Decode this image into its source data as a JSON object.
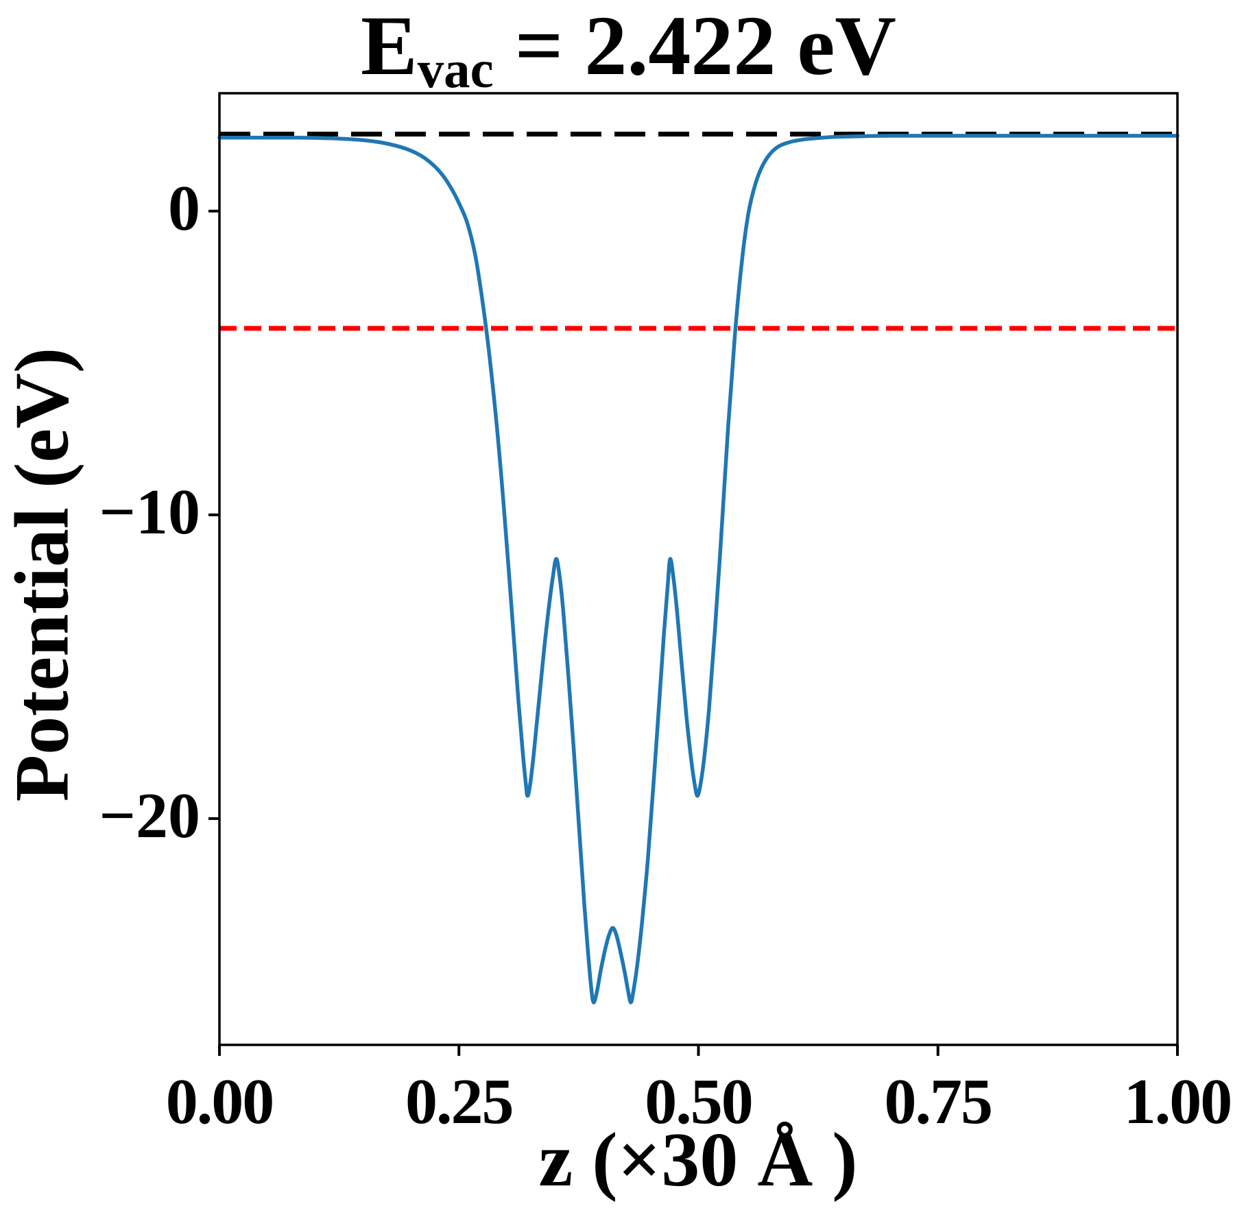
{
  "title": {
    "prefix": "E",
    "subscript": "vac",
    "suffix": " = 2.422 eV",
    "full": "E_vac = 2.422 eV"
  },
  "axes": {
    "xlabel": "z (×30 Å )",
    "ylabel": "Potential (eV)"
  },
  "colors": {
    "curve": "#1f77b4",
    "vacuum_line": "#000000",
    "fermi_line": "#ff0000",
    "text": "#000000",
    "background": "#ffffff"
  },
  "chart_data": {
    "type": "line",
    "title": "E_vac = 2.422 eV",
    "xlabel": "z (×30 Å )",
    "ylabel": "Potential (eV)",
    "xlim": [
      0,
      1
    ],
    "ylim": [
      -27.45,
      3.88
    ],
    "grid": false,
    "legend": null,
    "x_ticks": {
      "values": [
        0,
        0.25,
        0.5,
        0.75,
        1.0
      ],
      "labels": [
        "0.00",
        "0.25",
        "0.50",
        "0.75",
        "1.00"
      ]
    },
    "y_ticks": {
      "values": [
        0,
        -10,
        -20
      ],
      "labels": [
        "0",
        "−10",
        "−20"
      ]
    },
    "reference_lines": [
      {
        "name": "vacuum-level",
        "value": 2.422,
        "color": "#000000",
        "style": "dashed"
      },
      {
        "name": "fermi-level",
        "value": -3.86,
        "color": "#ff0000",
        "style": "dashed"
      }
    ],
    "series": [
      {
        "name": "planar-averaged-potential",
        "color": "#1f77b4",
        "style": "solid",
        "points": [
          [
            0.0,
            2.42
          ],
          [
            0.04,
            2.42
          ],
          [
            0.075,
            2.42
          ],
          [
            0.1,
            2.41
          ],
          [
            0.13,
            2.38
          ],
          [
            0.155,
            2.32
          ],
          [
            0.175,
            2.22
          ],
          [
            0.195,
            2.05
          ],
          [
            0.21,
            1.83
          ],
          [
            0.222,
            1.55
          ],
          [
            0.232,
            1.22
          ],
          [
            0.242,
            0.75
          ],
          [
            0.251,
            0.2
          ],
          [
            0.259,
            -0.42
          ],
          [
            0.267,
            -1.45
          ],
          [
            0.274,
            -2.84
          ],
          [
            0.281,
            -4.54
          ],
          [
            0.289,
            -6.9
          ],
          [
            0.297,
            -9.8
          ],
          [
            0.305,
            -13.1
          ],
          [
            0.312,
            -16.1
          ],
          [
            0.317,
            -17.95
          ],
          [
            0.32,
            -18.9
          ],
          [
            0.3215,
            -19.25
          ],
          [
            0.324,
            -18.95
          ],
          [
            0.328,
            -17.9
          ],
          [
            0.333,
            -16.3
          ],
          [
            0.339,
            -14.4
          ],
          [
            0.344,
            -13.0
          ],
          [
            0.348,
            -12.05
          ],
          [
            0.3515,
            -11.45
          ],
          [
            0.355,
            -12.0
          ],
          [
            0.359,
            -13.2
          ],
          [
            0.364,
            -15.2
          ],
          [
            0.37,
            -17.8
          ],
          [
            0.376,
            -20.6
          ],
          [
            0.381,
            -22.9
          ],
          [
            0.385,
            -24.5
          ],
          [
            0.388,
            -25.55
          ],
          [
            0.3905,
            -26.05
          ],
          [
            0.394,
            -25.7
          ],
          [
            0.398,
            -25.0
          ],
          [
            0.403,
            -24.25
          ],
          [
            0.407,
            -23.8
          ],
          [
            0.4105,
            -23.6
          ],
          [
            0.414,
            -23.8
          ],
          [
            0.418,
            -24.3
          ],
          [
            0.423,
            -25.05
          ],
          [
            0.427,
            -25.75
          ],
          [
            0.4295,
            -26.05
          ],
          [
            0.432,
            -25.7
          ],
          [
            0.436,
            -24.85
          ],
          [
            0.441,
            -23.45
          ],
          [
            0.447,
            -21.4
          ],
          [
            0.453,
            -18.9
          ],
          [
            0.459,
            -16.2
          ],
          [
            0.464,
            -13.9
          ],
          [
            0.468,
            -12.3
          ],
          [
            0.4705,
            -11.45
          ],
          [
            0.474,
            -12.1
          ],
          [
            0.478,
            -13.3
          ],
          [
            0.483,
            -15.1
          ],
          [
            0.488,
            -16.8
          ],
          [
            0.493,
            -18.2
          ],
          [
            0.4965,
            -18.95
          ],
          [
            0.499,
            -19.25
          ],
          [
            0.502,
            -18.9
          ],
          [
            0.506,
            -18.0
          ],
          [
            0.511,
            -16.4
          ],
          [
            0.517,
            -13.9
          ],
          [
            0.524,
            -10.6
          ],
          [
            0.531,
            -7.1
          ],
          [
            0.538,
            -4.1
          ],
          [
            0.545,
            -1.75
          ],
          [
            0.552,
            -0.1
          ],
          [
            0.56,
            0.95
          ],
          [
            0.569,
            1.62
          ],
          [
            0.58,
            2.05
          ],
          [
            0.593,
            2.25
          ],
          [
            0.61,
            2.36
          ],
          [
            0.635,
            2.43
          ],
          [
            0.665,
            2.46
          ],
          [
            0.7,
            2.48
          ],
          [
            0.76,
            2.48
          ],
          [
            0.84,
            2.48
          ],
          [
            0.92,
            2.48
          ],
          [
            1.0,
            2.48
          ]
        ]
      }
    ]
  }
}
